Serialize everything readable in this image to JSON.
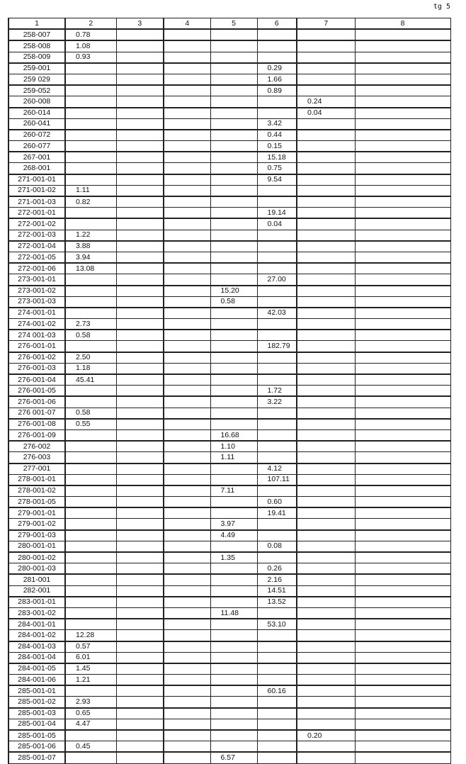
{
  "page_label": "tg 5",
  "header": [
    "1",
    "2",
    "3",
    "4",
    "5",
    "6",
    "7",
    "8"
  ],
  "rows": [
    [
      "258-007",
      "0.78",
      "",
      "",
      "",
      "",
      "",
      ""
    ],
    [
      "258-008",
      "1.08",
      "",
      "",
      "",
      "",
      "",
      ""
    ],
    [
      "258-009",
      "0.93",
      "",
      "",
      "",
      "",
      "",
      ""
    ],
    [
      "259-001",
      "",
      "",
      "",
      "",
      "0.29",
      "",
      ""
    ],
    [
      "259 029",
      "",
      "",
      "",
      "",
      "1.66",
      "",
      ""
    ],
    [
      "259-052",
      "",
      "",
      "",
      "",
      "0.89",
      "",
      ""
    ],
    [
      "260-008",
      "",
      "",
      "",
      "",
      "",
      "0.24",
      ""
    ],
    [
      "260-014",
      "",
      "",
      "",
      "",
      "",
      "0.04",
      ""
    ],
    [
      "260-041",
      "",
      "",
      "",
      "",
      "3.42",
      "",
      ""
    ],
    [
      "260-072",
      "",
      "",
      "",
      "",
      "0.44",
      "",
      ""
    ],
    [
      "260-077",
      "",
      "",
      "",
      "",
      "0.15",
      "",
      ""
    ],
    [
      "267-001",
      "",
      "",
      "",
      "",
      "15.18",
      "",
      ""
    ],
    [
      "268-001",
      "",
      "",
      "",
      "",
      "0.75",
      "",
      ""
    ],
    [
      "271-001-01",
      "",
      "",
      "",
      "",
      "9.54",
      "",
      ""
    ],
    [
      "271-001-02",
      "1.11",
      "",
      "",
      "",
      "",
      "",
      ""
    ],
    [
      "271-001-03",
      "0.82",
      "",
      "",
      "",
      "",
      "",
      ""
    ],
    [
      "272-001-01",
      "",
      "",
      "",
      "",
      "19.14",
      "",
      ""
    ],
    [
      "272-001-02",
      "",
      "",
      "",
      "",
      "0.04",
      "",
      ""
    ],
    [
      "272-001-03",
      "1.22",
      "",
      "",
      "",
      "",
      "",
      ""
    ],
    [
      "272-001-04",
      "3.88",
      "",
      "",
      "",
      "",
      "",
      ""
    ],
    [
      "272-001-05",
      "3.94",
      "",
      "",
      "",
      "",
      "",
      ""
    ],
    [
      "272-001-06",
      "13.08",
      "",
      "",
      "",
      "",
      "",
      ""
    ],
    [
      "273-001-01",
      "",
      "",
      "",
      "",
      "27.00",
      "",
      ""
    ],
    [
      "273-001-02",
      "",
      "",
      "",
      "15.20",
      "",
      "",
      ""
    ],
    [
      "273-001-03",
      "",
      "",
      "",
      "0.58",
      "",
      "",
      ""
    ],
    [
      "274-001-01",
      "",
      "",
      "",
      "",
      "42.03",
      "",
      ""
    ],
    [
      "274-001-02",
      "2.73",
      "",
      "",
      "",
      "",
      "",
      ""
    ],
    [
      "274 001-03",
      "0.58",
      "",
      "",
      "",
      "",
      "",
      ""
    ],
    [
      "276-001-01",
      "",
      "",
      "",
      "",
      "182.79",
      "",
      ""
    ],
    [
      "276-001-02",
      "2.50",
      "",
      "",
      "",
      "",
      "",
      ""
    ],
    [
      "276-001-03",
      "1.18",
      "",
      "",
      "",
      "",
      "",
      ""
    ],
    [
      "276-001-04",
      "45.41",
      "",
      "",
      "",
      "",
      "",
      ""
    ],
    [
      "276-001-05",
      "",
      "",
      "",
      "",
      "1.72",
      "",
      ""
    ],
    [
      "276-001-06",
      "",
      "",
      "",
      "",
      "3.22",
      "",
      ""
    ],
    [
      "276 001-07",
      "0.58",
      "",
      "",
      "",
      "",
      "",
      ""
    ],
    [
      "276-001-08",
      "0.55",
      "",
      "",
      "",
      "",
      "",
      ""
    ],
    [
      "276-001-09",
      "",
      "",
      "",
      "16.68",
      "",
      "",
      ""
    ],
    [
      "276-002",
      "",
      "",
      "",
      "1.10",
      "",
      "",
      ""
    ],
    [
      "276-003",
      "",
      "",
      "",
      "1.11",
      "",
      "",
      ""
    ],
    [
      "277-001",
      "",
      "",
      "",
      "",
      "4.12",
      "",
      ""
    ],
    [
      "278-001-01",
      "",
      "",
      "",
      "",
      "107.11",
      "",
      ""
    ],
    [
      "278-001-02",
      "",
      "",
      "",
      "7.11",
      "",
      "",
      ""
    ],
    [
      "278-001-05",
      "",
      "",
      "",
      "",
      "0.60",
      "",
      ""
    ],
    [
      "279-001-01",
      "",
      "",
      "",
      "",
      "19.41",
      "",
      ""
    ],
    [
      "279-001-02",
      "",
      "",
      "",
      "3.97",
      "",
      "",
      ""
    ],
    [
      "279-001-03",
      "",
      "",
      "",
      "4.49",
      "",
      "",
      ""
    ],
    [
      "280-001-01",
      "",
      "",
      "",
      "",
      "0.08",
      "",
      ""
    ],
    [
      "280-001-02",
      "",
      "",
      "",
      "1.35",
      "",
      "",
      ""
    ],
    [
      "280-001-03",
      "",
      "",
      "",
      "",
      "0.26",
      "",
      ""
    ],
    [
      "281-001",
      "",
      "",
      "",
      "",
      "2.16",
      "",
      ""
    ],
    [
      "282-001",
      "",
      "",
      "",
      "",
      "14.51",
      "",
      ""
    ],
    [
      "283-001-01",
      "",
      "",
      "",
      "",
      "13.52",
      "",
      ""
    ],
    [
      "283-001-02",
      "",
      "",
      "",
      "11.48",
      "",
      "",
      ""
    ],
    [
      "284-001-01",
      "",
      "",
      "",
      "",
      "53.10",
      "",
      ""
    ],
    [
      "284-001-02",
      "12.28",
      "",
      "",
      "",
      "",
      "",
      ""
    ],
    [
      "284-001-03",
      "0.57",
      "",
      "",
      "",
      "",
      "",
      ""
    ],
    [
      "284-001-04",
      "6.01",
      "",
      "",
      "",
      "",
      "",
      ""
    ],
    [
      "284-001-05",
      "1.45",
      "",
      "",
      "",
      "",
      "",
      ""
    ],
    [
      "284-001-06",
      "1.21",
      "",
      "",
      "",
      "",
      "",
      ""
    ],
    [
      "285-001-01",
      "",
      "",
      "",
      "",
      "60.16",
      "",
      ""
    ],
    [
      "285-001-02",
      "2.93",
      "",
      "",
      "",
      "",
      "",
      ""
    ],
    [
      "285-001-03",
      "0.65",
      "",
      "",
      "",
      "",
      "",
      ""
    ],
    [
      "285-001-04",
      "4.47",
      "",
      "",
      "",
      "",
      "",
      ""
    ],
    [
      "285-001-05",
      "",
      "",
      "",
      "",
      "",
      "0.20",
      ""
    ],
    [
      "285-001-06",
      "0.45",
      "",
      "",
      "",
      "",
      "",
      ""
    ],
    [
      "285-001-07",
      "",
      "",
      "",
      "6.57",
      "",
      "",
      ""
    ]
  ]
}
